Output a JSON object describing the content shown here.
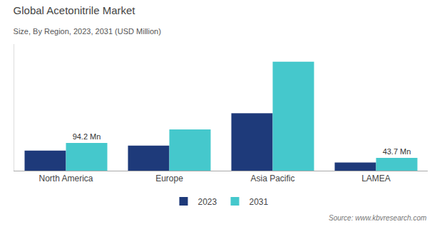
{
  "chart_data": {
    "type": "bar",
    "title": "Global Acetonitrile Market",
    "subtitle": "Size, By Region, 2023, 2031 (USD Million)",
    "categories": [
      "North America",
      "Europe",
      "Asia Pacific",
      "LAMEA"
    ],
    "series": [
      {
        "name": "2023",
        "color": "#1e3a7a",
        "values": [
          68,
          85,
          195,
          28
        ]
      },
      {
        "name": "2031",
        "color": "#45c8cc",
        "values": [
          94.2,
          140,
          370,
          43.7
        ]
      }
    ],
    "annotations": [
      {
        "text": "94.2 Mn",
        "category": "North America",
        "series": "2031"
      },
      {
        "text": "43.7 Mn",
        "category": "LAMEA",
        "series": "2031"
      }
    ],
    "source": "Source: www.kbvresearch.com",
    "ylim": [
      0,
      430
    ],
    "tick_labels": "x",
    "grid": false,
    "legend": "bottom"
  }
}
